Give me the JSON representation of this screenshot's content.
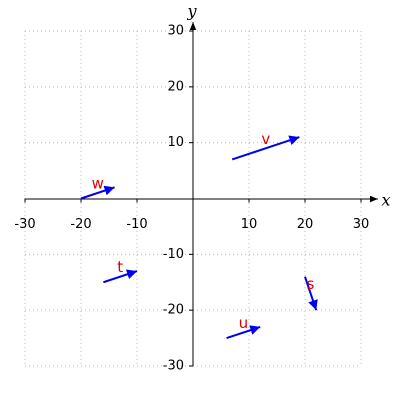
{
  "chart_data": {
    "type": "vector",
    "x_label": "x",
    "y_label": "y",
    "xlim": [
      -30,
      30
    ],
    "ylim": [
      -30,
      30
    ],
    "xticks": [
      -30,
      -20,
      -10,
      10,
      20,
      30
    ],
    "yticks": [
      -30,
      -20,
      -10,
      10,
      20,
      30
    ],
    "grid": true,
    "color": "#0000ee",
    "label_color": "#e00000",
    "vectors": [
      {
        "name": "v",
        "x": 7,
        "y": 7,
        "dx": 12,
        "dy": 4
      },
      {
        "name": "w",
        "x": -20,
        "y": 0,
        "dx": 6,
        "dy": 2
      },
      {
        "name": "t",
        "x": -16,
        "y": -15,
        "dx": 6,
        "dy": 2
      },
      {
        "name": "u",
        "x": 6,
        "y": -25,
        "dx": 6,
        "dy": 2
      },
      {
        "name": "s",
        "x": 20,
        "y": -14,
        "dx": 2,
        "dy": -6
      }
    ]
  }
}
